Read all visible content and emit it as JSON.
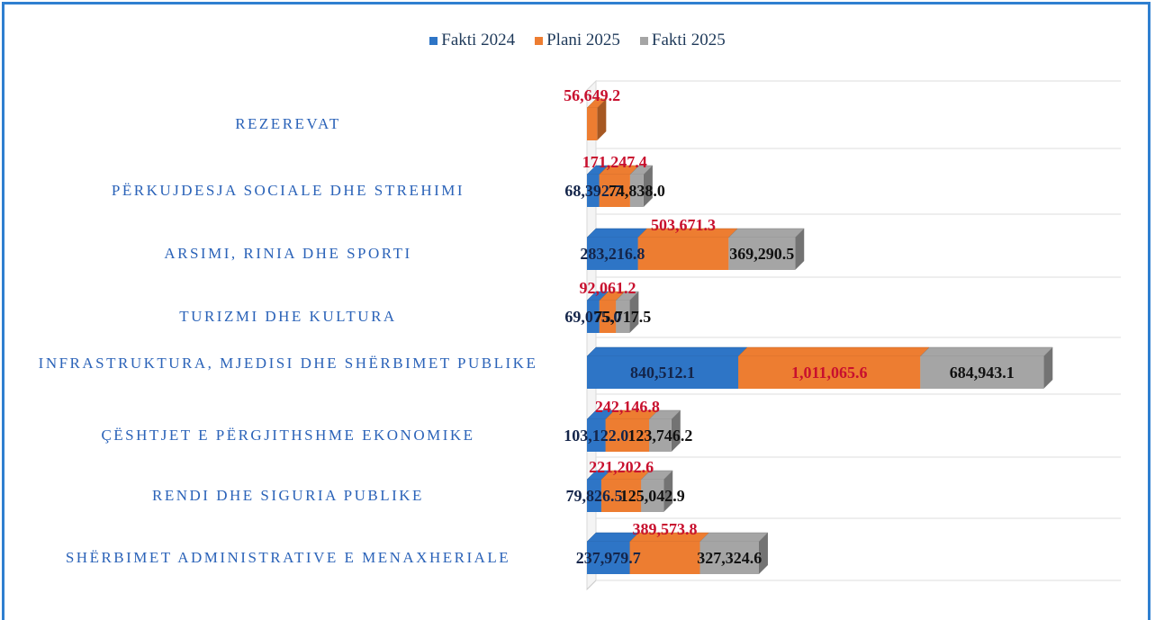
{
  "chart_data": {
    "type": "bar",
    "orientation": "horizontal",
    "stacked": true,
    "categories": [
      "REZEREVAT",
      "PËRKUJDESJA SOCIALE DHE STREHIMI",
      "ARSIMI, RINIA DHE SPORTI",
      "TURIZMI DHE KULTURA",
      "INFRASTRUKTURA, MJEDISI DHE SHËRBIMET PUBLIKE",
      "ÇËSHTJET E PËRGJITHSHME EKONOMIKE",
      "RENDI DHE SIGURIA PUBLIKE",
      "SHËRBIMET ADMINISTRATIVE E MENAXHERIALE"
    ],
    "series": [
      {
        "name": "Fakti 2024",
        "color": "#2e75c6",
        "label_color": "#14254a",
        "values": [
          null,
          68392.7,
          283216.8,
          69075.0,
          840512.1,
          103122.0,
          79826.5,
          237979.7
        ],
        "value_labels": [
          null,
          "68,392.7",
          "283,216.8",
          "69,075.0",
          "840,512.1",
          "103,122.0",
          "79,826.5",
          "237,979.7"
        ]
      },
      {
        "name": "Plani 2025",
        "color": "#ed7d31",
        "label_color": "#c8102e",
        "values": [
          56649.2,
          171247.4,
          503671.3,
          92061.2,
          1011065.6,
          242146.8,
          221202.6,
          389573.8
        ],
        "value_labels": [
          "56,649.2",
          "171,247.4",
          "503,671.3",
          "92,061.2",
          "1,011,065.6",
          "242,146.8",
          "221,202.6",
          "389,573.8"
        ]
      },
      {
        "name": "Fakti 2025",
        "color": "#a5a5a5",
        "label_color": "#111111",
        "values": [
          null,
          74838.0,
          369290.5,
          75717.5,
          684943.1,
          123746.2,
          125042.9,
          327324.6
        ],
        "value_labels": [
          null,
          "74,838.0",
          "369,290.5",
          "75,717.5",
          "684,943.1",
          "123,746.2",
          "125,042.9",
          "327,324.6"
        ]
      }
    ],
    "xlim": [
      0,
      3000000
    ],
    "legend": "top"
  }
}
